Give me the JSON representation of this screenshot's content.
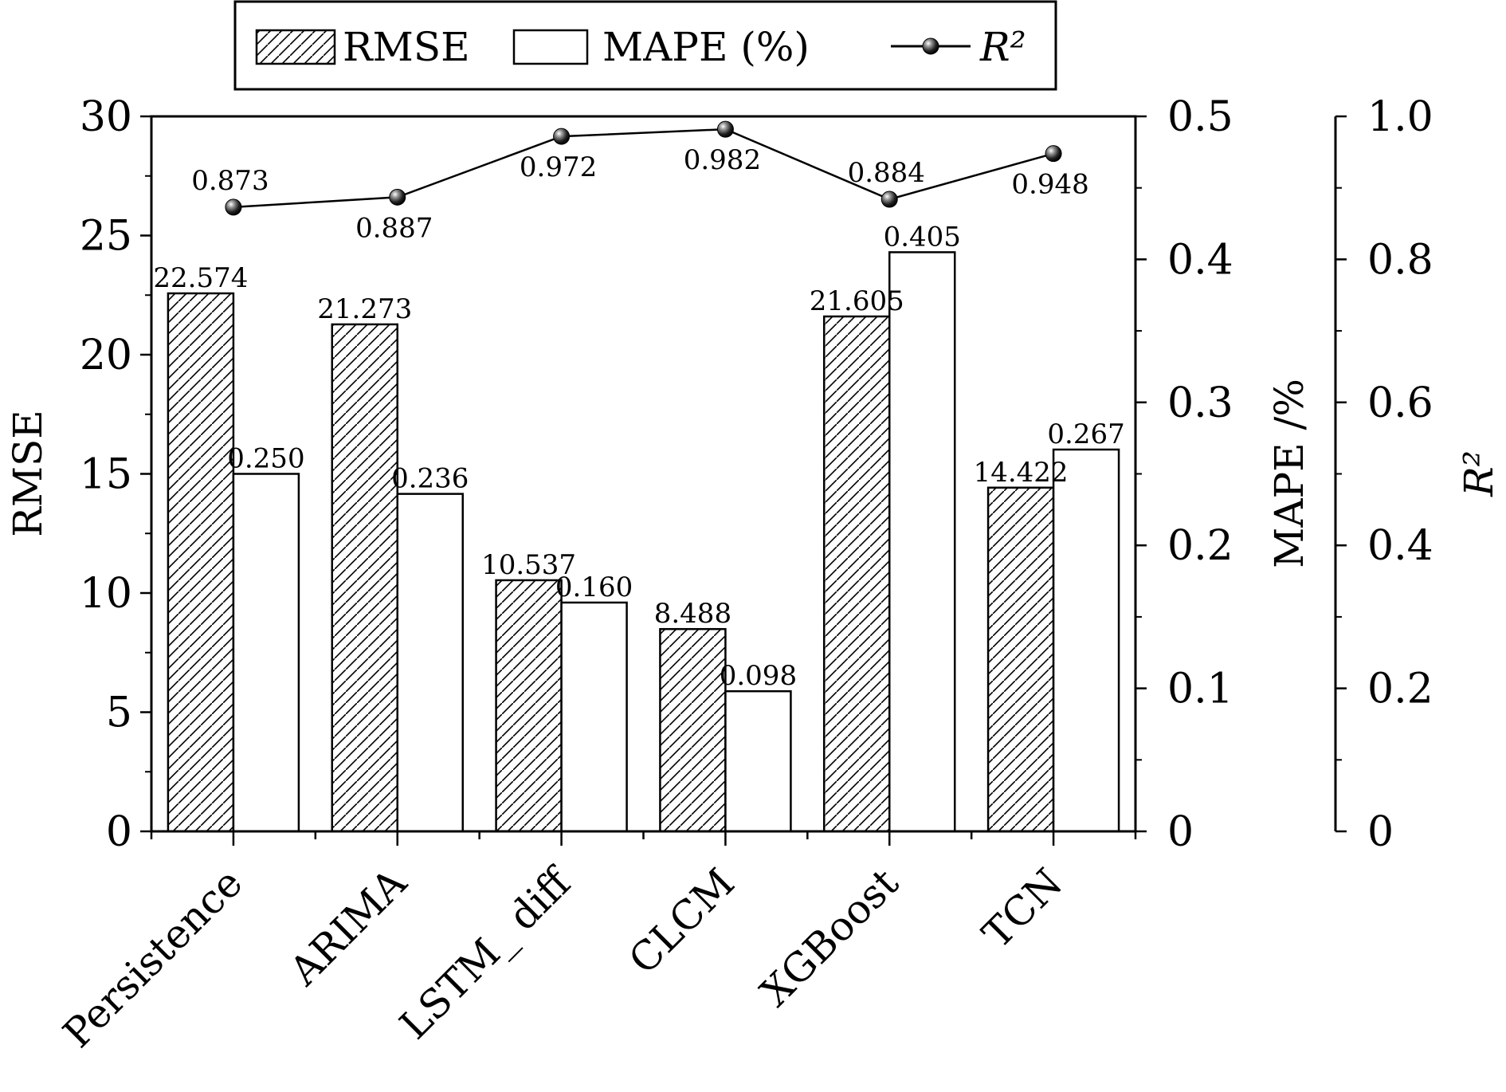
{
  "chart_data": {
    "type": "bar",
    "categories": [
      "Persistence",
      "ARIMA",
      "LSTM_ diff",
      "CLCM",
      "XGBoost",
      "TCN"
    ],
    "series": [
      {
        "name": "RMSE",
        "kind": "bar",
        "axis": "left",
        "pattern": "hatch",
        "values": [
          22.574,
          21.273,
          10.537,
          8.488,
          21.605,
          14.422
        ],
        "labels": [
          "22.574",
          "21.273",
          "10.537",
          "8.488",
          "21.605",
          "14.422"
        ]
      },
      {
        "name": "MAPE (%)",
        "kind": "bar",
        "axis": "right1",
        "pattern": "none",
        "values": [
          0.25,
          0.236,
          0.16,
          0.098,
          0.405,
          0.267
        ],
        "labels": [
          "0.250",
          "0.236",
          "0.160",
          "0.098",
          "0.405",
          "0.267"
        ]
      },
      {
        "name": "R²",
        "kind": "line",
        "axis": "right2",
        "marker": "sphere",
        "values": [
          0.873,
          0.887,
          0.972,
          0.982,
          0.884,
          0.948
        ],
        "labels": [
          "0.873",
          "0.887",
          "0.972",
          "0.982",
          "0.884",
          "0.948"
        ]
      }
    ],
    "axes": {
      "left": {
        "label": "RMSE",
        "ylim": [
          0,
          30
        ],
        "ticks": [
          "0",
          "5",
          "10",
          "15",
          "20",
          "25",
          "30"
        ]
      },
      "right1": {
        "label": "MAPE /%",
        "ylim": [
          0,
          0.5
        ],
        "ticks": [
          "0",
          "0.1",
          "0.2",
          "0.3",
          "0.4",
          "0.5"
        ]
      },
      "right2": {
        "label": "R²",
        "ylim": [
          0,
          1.0
        ],
        "ticks": [
          "0",
          "0.2",
          "0.4",
          "0.6",
          "0.8",
          "1.0"
        ]
      }
    },
    "xlabel": "",
    "grid": false,
    "legend": {
      "placement": "top-center",
      "entries": [
        "RMSE",
        "MAPE (%)",
        "R²"
      ]
    },
    "colors": {
      "ink": "#000000",
      "background": "#ffffff"
    }
  }
}
